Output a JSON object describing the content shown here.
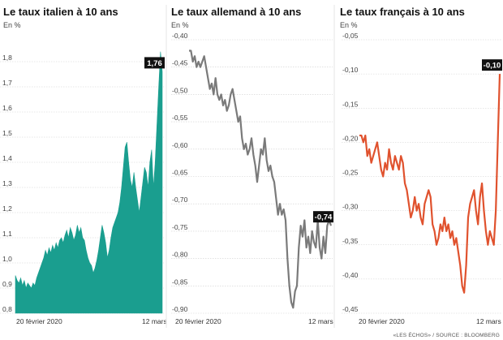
{
  "footer": {
    "source": "«LES ÉCHOS» / SOURCE : BLOOMBERG"
  },
  "chart_data": [
    {
      "type": "area",
      "title": "Le taux italien à 10 ans",
      "unit_label": "En %",
      "ylim": [
        0.8,
        1.9
      ],
      "yticks": [
        0.8,
        0.9,
        1.0,
        1.1,
        1.2,
        1.3,
        1.4,
        1.5,
        1.6,
        1.7,
        1.8
      ],
      "ytick_labels": [
        "0,8",
        "0,9",
        "1,0",
        "1,1",
        "1,2",
        "1,3",
        "1,4",
        "1,5",
        "1,6",
        "1,7",
        "1,8"
      ],
      "xtick_labels": [
        "20 février 2020",
        "12 mars"
      ],
      "color": "#1a9e8f",
      "end_label": "1,76",
      "end_value": 1.76,
      "grid": true,
      "series": [
        {
          "values": [
            0.95,
            0.93,
            0.92,
            0.94,
            0.91,
            0.93,
            0.9,
            0.92,
            0.91,
            0.9,
            0.92,
            0.91,
            0.94,
            0.96,
            0.98,
            1.0,
            1.02,
            1.05,
            1.03,
            1.06,
            1.04,
            1.07,
            1.05,
            1.08,
            1.06,
            1.09,
            1.1,
            1.08,
            1.11,
            1.13,
            1.1,
            1.14,
            1.12,
            1.09,
            1.11,
            1.15,
            1.12,
            1.14,
            1.1,
            1.09,
            1.05,
            1.02,
            1.0,
            0.99,
            0.96,
            0.98,
            1.01,
            1.05,
            1.1,
            1.15,
            1.12,
            1.08,
            1.02,
            1.05,
            1.1,
            1.14,
            1.16,
            1.18,
            1.2,
            1.24,
            1.3,
            1.38,
            1.46,
            1.48,
            1.4,
            1.33,
            1.3,
            1.36,
            1.3,
            1.25,
            1.2,
            1.26,
            1.32,
            1.38,
            1.36,
            1.3,
            1.4,
            1.45,
            1.3,
            1.4,
            1.55,
            1.7,
            1.84,
            1.76
          ]
        }
      ]
    },
    {
      "type": "line",
      "title": "Le taux allemand à 10 ans",
      "unit_label": "En %",
      "ylim": [
        -0.9,
        -0.4
      ],
      "yticks": [
        -0.4,
        -0.45,
        -0.5,
        -0.55,
        -0.6,
        -0.65,
        -0.7,
        -0.75,
        -0.8,
        -0.85,
        -0.9
      ],
      "ytick_labels": [
        "-0,40",
        "-0,45",
        "-0,50",
        "-0,55",
        "-0,60",
        "-0,65",
        "-0,70",
        "-0,75",
        "-0,80",
        "-0,85",
        "-0,90"
      ],
      "xtick_labels": [
        "20 février 2020",
        "12 mars"
      ],
      "color": "#7a7a7a",
      "end_label": "-0,74",
      "end_value": -0.74,
      "grid": true,
      "series": [
        {
          "values": [
            -0.42,
            -0.42,
            -0.44,
            -0.43,
            -0.45,
            -0.44,
            -0.45,
            -0.44,
            -0.43,
            -0.45,
            -0.47,
            -0.49,
            -0.48,
            -0.5,
            -0.47,
            -0.5,
            -0.51,
            -0.5,
            -0.52,
            -0.51,
            -0.53,
            -0.52,
            -0.5,
            -0.49,
            -0.51,
            -0.53,
            -0.55,
            -0.54,
            -0.58,
            -0.6,
            -0.59,
            -0.61,
            -0.6,
            -0.58,
            -0.61,
            -0.63,
            -0.66,
            -0.63,
            -0.6,
            -0.61,
            -0.58,
            -0.62,
            -0.64,
            -0.63,
            -0.65,
            -0.66,
            -0.69,
            -0.72,
            -0.7,
            -0.72,
            -0.71,
            -0.73,
            -0.8,
            -0.85,
            -0.88,
            -0.89,
            -0.86,
            -0.85,
            -0.78,
            -0.74,
            -0.76,
            -0.73,
            -0.78,
            -0.76,
            -0.79,
            -0.75,
            -0.77,
            -0.78,
            -0.73,
            -0.78,
            -0.8,
            -0.76,
            -0.79,
            -0.74,
            -0.73,
            -0.74
          ]
        }
      ]
    },
    {
      "type": "line",
      "title": "Le taux français à 10 ans",
      "unit_label": "En %",
      "ylim": [
        -0.45,
        -0.05
      ],
      "yticks": [
        -0.05,
        -0.1,
        -0.15,
        -0.2,
        -0.25,
        -0.3,
        -0.35,
        -0.4,
        -0.45
      ],
      "ytick_labels": [
        "-0,05",
        "-0,10",
        "-0,15",
        "-0,20",
        "-0,25",
        "-0,30",
        "-0,35",
        "-0,40",
        "-0,45"
      ],
      "xtick_labels": [
        "20 février 2020",
        "12 mars"
      ],
      "color": "#e0522e",
      "end_label": "-0,10",
      "end_value": -0.1,
      "grid": true,
      "series": [
        {
          "values": [
            -0.19,
            -0.19,
            -0.2,
            -0.19,
            -0.22,
            -0.21,
            -0.23,
            -0.22,
            -0.21,
            -0.2,
            -0.22,
            -0.24,
            -0.25,
            -0.23,
            -0.24,
            -0.21,
            -0.23,
            -0.24,
            -0.22,
            -0.23,
            -0.24,
            -0.22,
            -0.23,
            -0.26,
            -0.27,
            -0.29,
            -0.31,
            -0.3,
            -0.28,
            -0.3,
            -0.29,
            -0.31,
            -0.32,
            -0.29,
            -0.28,
            -0.27,
            -0.28,
            -0.32,
            -0.33,
            -0.35,
            -0.34,
            -0.32,
            -0.33,
            -0.31,
            -0.33,
            -0.32,
            -0.34,
            -0.33,
            -0.35,
            -0.34,
            -0.36,
            -0.38,
            -0.41,
            -0.42,
            -0.38,
            -0.31,
            -0.29,
            -0.28,
            -0.27,
            -0.3,
            -0.32,
            -0.28,
            -0.26,
            -0.3,
            -0.33,
            -0.35,
            -0.33,
            -0.34,
            -0.35,
            -0.3,
            -0.2,
            -0.1
          ]
        }
      ]
    }
  ]
}
